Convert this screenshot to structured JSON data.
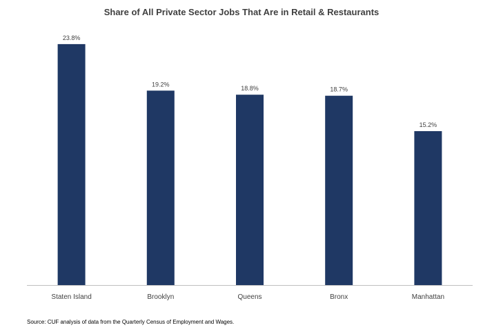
{
  "colors": {
    "bar": "#1f3864",
    "axis": "#bfbfbf",
    "label": "#404040"
  },
  "chart_data": {
    "type": "bar",
    "title": "Share of All Private Sector Jobs That Are in Retail & Restaurants",
    "xlabel": "",
    "ylabel": "",
    "categories": [
      "Staten Island",
      "Brooklyn",
      "Queens",
      "Bronx",
      "Manhattan"
    ],
    "values": [
      23.8,
      19.2,
      18.8,
      18.7,
      15.2
    ],
    "data_labels": [
      "23.8%",
      "19.2%",
      "18.8%",
      "18.7%",
      "15.2%"
    ],
    "value_unit": "%",
    "ylim": [
      0,
      25
    ],
    "grid": false,
    "legend": "none"
  },
  "source": "Source: CUF analysis of data from the Quarterly Census of Employment and Wages."
}
